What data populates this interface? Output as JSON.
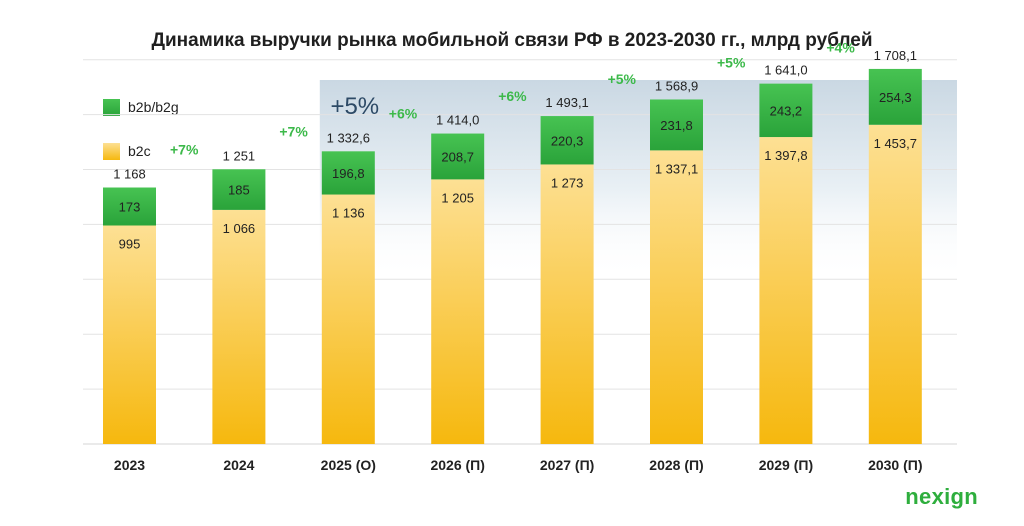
{
  "title": "Динамика выручки рынка мобильной связи РФ в 2023-2030 гг., млрд рублей",
  "brand": "nexign",
  "colors": {
    "green_top": "#47c352",
    "green_bottom": "#2aa33a",
    "yellow_top": "#fde094",
    "yellow_bottom": "#f6b80e",
    "growth_text": "#3cb94a",
    "forecast_label": "#2d4a66"
  },
  "legend": [
    {
      "label": "b2b/b2g",
      "color": "#3cb94a"
    },
    {
      "label": "b2c",
      "color": "#f7c95a"
    }
  ],
  "chart_data": {
    "type": "bar",
    "stacked": true,
    "title": "Динамика выручки рынка мобильной связи РФ в 2023-2030 гг., млрд рублей",
    "categories": [
      "2023",
      "2024",
      "2025 (O)",
      "2026 (П)",
      "2027 (П)",
      "2028 (П)",
      "2029 (П)",
      "2030 (П)"
    ],
    "series": [
      {
        "name": "b2c",
        "values": [
          995,
          1066,
          1136,
          1205,
          1273,
          1337.1,
          1397.8,
          1453.7
        ],
        "labels": [
          "995",
          "1 066",
          "1 136",
          "1 205",
          "1 273",
          "1 337,1",
          "1 397,8",
          "1 453,7"
        ]
      },
      {
        "name": "b2b/b2g",
        "values": [
          173,
          185,
          196.8,
          208.7,
          220.3,
          231.8,
          243.2,
          254.3
        ],
        "labels": [
          "173",
          "185",
          "196,8",
          "208,7",
          "220,3",
          "231,8",
          "243,2",
          "254,3"
        ]
      }
    ],
    "totals": [
      "1 168",
      "1 251",
      "1 332,6",
      "1 414,0",
      "1 493,1",
      "1 568,9",
      "1 641,0",
      "1 708,1"
    ],
    "growth": [
      "+7%",
      "+7%",
      "+6%",
      "+6%",
      "+5%",
      "+5%",
      "+4%"
    ],
    "forecast_cagr": "+5%",
    "forecast_from_index": 2,
    "ylim": [
      0,
      2000
    ],
    "grid": true,
    "legend_position": "top-left"
  }
}
